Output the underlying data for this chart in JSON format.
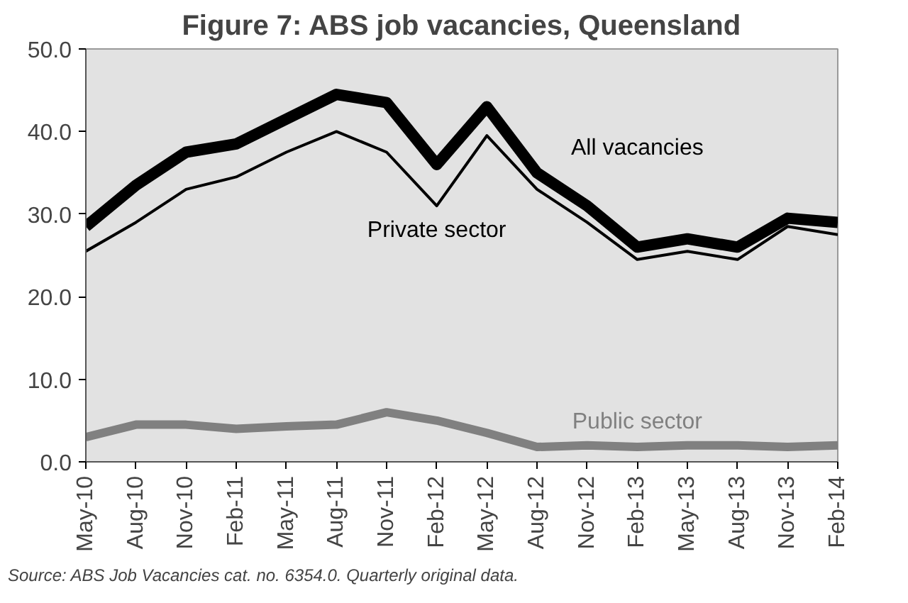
{
  "chart_data": {
    "type": "line",
    "title": "Figure 7: ABS job vacancies, Queensland",
    "categories": [
      "May-10",
      "Aug-10",
      "Nov-10",
      "Feb-11",
      "May-11",
      "Aug-11",
      "Nov-11",
      "Feb-12",
      "May-12",
      "Aug-12",
      "Nov-12",
      "Feb-13",
      "May-13",
      "Aug-13",
      "Nov-13",
      "Feb-14"
    ],
    "series": [
      {
        "name": "All vacancies",
        "color": "#000000",
        "values": [
          28.5,
          33.5,
          37.5,
          38.5,
          41.5,
          44.5,
          43.5,
          36.0,
          43.0,
          35.0,
          31.0,
          26.0,
          27.0,
          26.0,
          29.5,
          29.0
        ]
      },
      {
        "name": "Private sector",
        "color": "#000000",
        "values": [
          25.5,
          29.0,
          33.0,
          34.5,
          37.5,
          40.0,
          37.5,
          31.0,
          39.5,
          33.0,
          29.0,
          24.5,
          25.5,
          24.5,
          28.5,
          27.5
        ]
      },
      {
        "name": "Public sector",
        "color": "#808080",
        "values": [
          3.0,
          4.5,
          4.5,
          4.0,
          4.3,
          4.5,
          6.0,
          5.0,
          3.5,
          1.8,
          2.0,
          1.8,
          2.0,
          2.0,
          1.8,
          2.0
        ]
      }
    ],
    "ylim": [
      0,
      50
    ],
    "yticks": [
      {
        "value": 0,
        "label": "0.0"
      },
      {
        "value": 10,
        "label": "10.0"
      },
      {
        "value": 20,
        "label": "20.0"
      },
      {
        "value": 30,
        "label": "30.0"
      },
      {
        "value": 40,
        "label": "40.0"
      },
      {
        "value": 50,
        "label": "50.0"
      }
    ],
    "grid": false,
    "marker": "none",
    "line_style": "solid",
    "annotations": [
      "Source: ABS Job Vacancies cat. no. 6354.0. Quarterly original data."
    ]
  }
}
